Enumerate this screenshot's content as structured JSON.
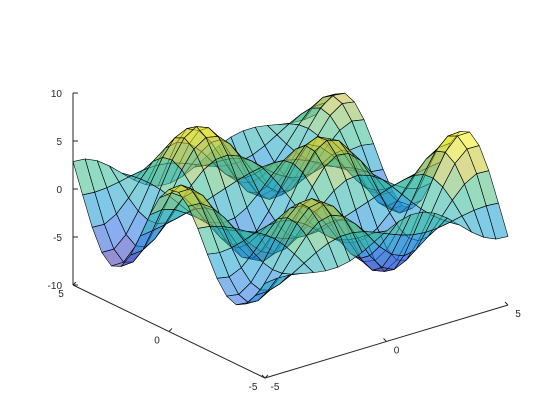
{
  "chart_data": {
    "type": "surface",
    "title": "",
    "xlabel": "",
    "ylabel": "",
    "zlabel": "",
    "xlim": [
      -5,
      5
    ],
    "ylim": [
      -5,
      5
    ],
    "zlim": [
      -10,
      10
    ],
    "x_ticks": [
      "-5",
      "0",
      "5"
    ],
    "y_ticks": [
      "-5",
      "0",
      "5"
    ],
    "z_ticks": [
      "-10",
      "-5",
      "0",
      "5",
      "10"
    ],
    "grid_size": 21,
    "x_min": -5,
    "x_max": 5,
    "y_min": -5,
    "y_max": 5,
    "function": "z = 5*sin(x)*cos(y) + 2*cos(0.6*x)*sin(0.8*y)",
    "colormap": "parula",
    "face_alpha": 0.55,
    "edge_color": "#000000"
  }
}
